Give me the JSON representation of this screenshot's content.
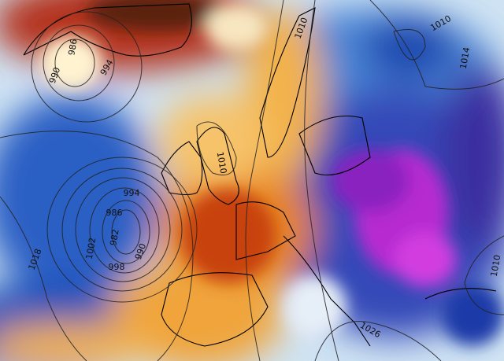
{
  "isobar_labels": [
    986,
    990,
    994,
    1010,
    1010,
    1014,
    1010,
    994,
    986,
    982,
    990,
    1002,
    998,
    1018,
    1026,
    1010
  ]
}
